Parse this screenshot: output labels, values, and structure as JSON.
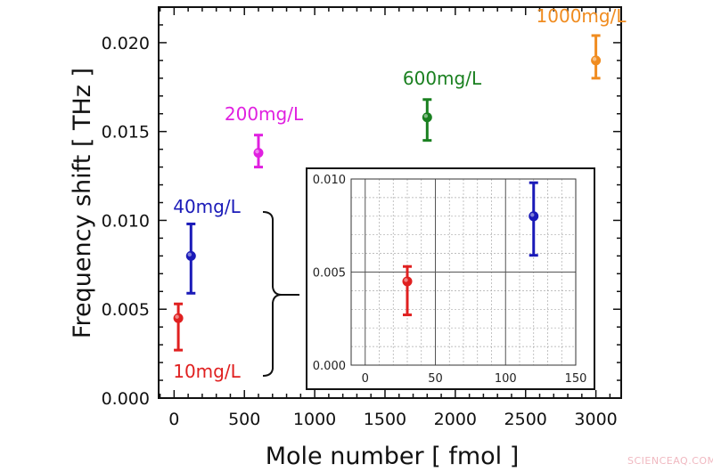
{
  "chart_data": {
    "type": "scatter",
    "xlabel": "Mole number [ fmol ]",
    "ylabel": "Frequency shift [ THz ]",
    "xlim": [
      -110,
      3180
    ],
    "ylim": [
      0,
      0.022
    ],
    "xticks": [
      "0",
      "500",
      "1000",
      "1500",
      "2000",
      "2500",
      "3000"
    ],
    "yticks": [
      "0.000",
      "0.005",
      "0.010",
      "0.015",
      "0.020"
    ],
    "grid": false,
    "points": [
      {
        "label": "10mg/L",
        "x": 30,
        "y": 0.0045,
        "yerr_low": 0.0027,
        "yerr_high": 0.0053,
        "color": "#e02020"
      },
      {
        "label": "40mg/L",
        "x": 120,
        "y": 0.008,
        "yerr_low": 0.0059,
        "yerr_high": 0.0098,
        "color": "#1a1ab8"
      },
      {
        "label": "200mg/L",
        "x": 600,
        "y": 0.0138,
        "yerr_low": 0.013,
        "yerr_high": 0.0148,
        "color": "#e020e0"
      },
      {
        "label": "600mg/L",
        "x": 1800,
        "y": 0.0158,
        "yerr_low": 0.0145,
        "yerr_high": 0.0168,
        "color": "#1a8020"
      },
      {
        "label": "1000mg/L",
        "x": 3000,
        "y": 0.019,
        "yerr_low": 0.018,
        "yerr_high": 0.0204,
        "color": "#f08c20"
      }
    ],
    "inset": {
      "xlim": [
        -10,
        150
      ],
      "ylim": [
        0,
        0.01
      ],
      "xticks": [
        "0",
        "50",
        "100",
        "150"
      ],
      "yticks": [
        "0.000",
        "0.005",
        "0.010"
      ],
      "grid": true,
      "points": [
        {
          "x": 30,
          "y": 0.0045,
          "yerr_low": 0.0027,
          "yerr_high": 0.0053,
          "color": "#e02020"
        },
        {
          "x": 120,
          "y": 0.008,
          "yerr_low": 0.0059,
          "yerr_high": 0.0098,
          "color": "#1a1ab8"
        }
      ]
    }
  },
  "watermark": "SCIENCEAQ.COM"
}
